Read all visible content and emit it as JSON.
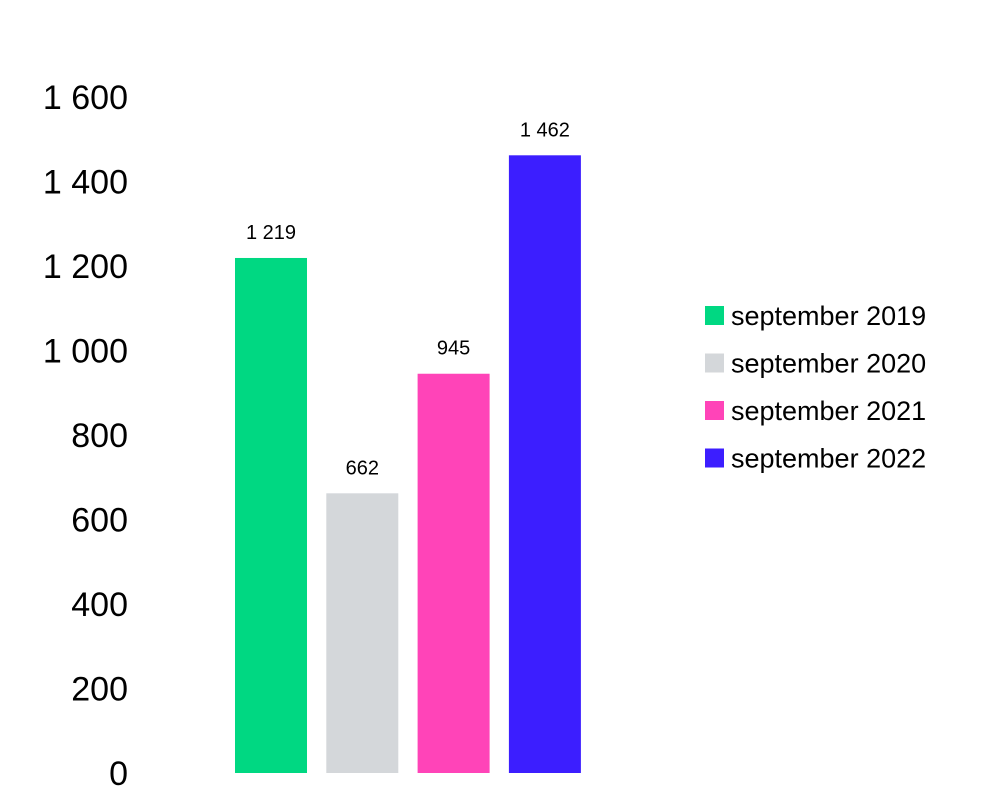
{
  "chart_data": {
    "type": "bar",
    "grid": false,
    "legend_position": "right",
    "ylim": [
      0,
      1600
    ],
    "y_ticks": [
      0,
      200,
      400,
      600,
      800,
      1000,
      1200,
      1400,
      1600
    ],
    "y_tick_labels": [
      "0",
      "200",
      "400",
      "600",
      "800",
      "1 000",
      "1 200",
      "1 400",
      "1 600"
    ],
    "series": [
      {
        "name": "september 2019",
        "value": 1219,
        "label": "1 219",
        "color": "#00d882"
      },
      {
        "name": "september 2020",
        "value": 662,
        "label": "662",
        "color": "#d4d7da"
      },
      {
        "name": "september 2021",
        "value": 945,
        "label": "945",
        "color": "#ff44b8"
      },
      {
        "name": "september 2022",
        "value": 1462,
        "label": "1 462",
        "color": "#3c1eff"
      }
    ]
  }
}
